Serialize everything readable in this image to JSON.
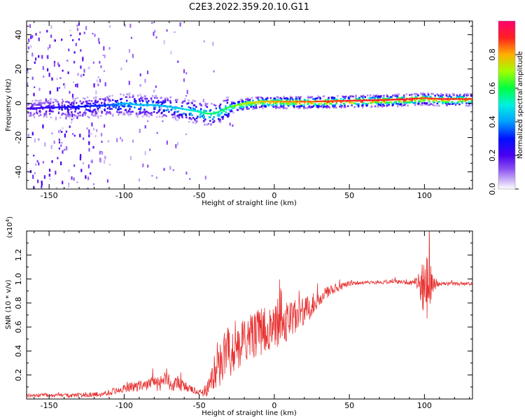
{
  "title": "C2E3.2022.359.20.10.G11",
  "colorbar": {
    "label": "Normalized spectral amplitude",
    "ticks": [
      0.0,
      0.2,
      0.4,
      0.6,
      0.8
    ],
    "tick_labels": [
      "0.0",
      "0.2",
      "0.4",
      "0.6",
      "0.8"
    ]
  },
  "chart_data": [
    {
      "type": "heatmap",
      "xlabel": "Height of straight line (km)",
      "ylabel": "Frequency (Hz)",
      "xlim": [
        -165,
        132
      ],
      "ylim": [
        -50,
        48
      ],
      "xticks": [
        -150,
        -100,
        -50,
        0,
        50,
        100
      ],
      "xtick_labels": [
        "-150",
        "-100",
        "-50",
        "0",
        "50",
        "100"
      ],
      "yticks": [
        -40,
        -20,
        0,
        20,
        40
      ],
      "ytick_labels": [
        "-40",
        "-20",
        "0",
        "20",
        "40"
      ],
      "colormap": [
        "#ffffff",
        "#d9c8f5",
        "#8a50f0",
        "#5000f0",
        "#0000ff",
        "#00e0ff",
        "#00ff60",
        "#c0ff00",
        "#ff8000",
        "#ff0040"
      ],
      "ridge": {
        "x": [
          -165,
          -150,
          -130,
          -110,
          -100,
          -90,
          -80,
          -70,
          -60,
          -50,
          -45,
          -40,
          -35,
          -30,
          -20,
          -10,
          0,
          10,
          25,
          50,
          75,
          90,
          100,
          110,
          132
        ],
        "freq": [
          -3,
          -2.5,
          -2,
          -1,
          0,
          -1,
          -1,
          -2,
          -3.5,
          -5,
          -6,
          -6,
          -4,
          -2,
          0,
          1,
          1,
          1,
          1,
          1.5,
          2,
          2.5,
          3,
          2.5,
          2.5
        ],
        "peak_amplitude": [
          0.2,
          0.25,
          0.3,
          0.35,
          0.45,
          0.45,
          0.45,
          0.45,
          0.5,
          0.55,
          0.6,
          0.6,
          0.6,
          0.65,
          0.75,
          0.8,
          0.85,
          0.85,
          0.9,
          0.95,
          0.95,
          0.95,
          0.9,
          0.95,
          0.9
        ]
      }
    },
    {
      "type": "line",
      "xlabel": "Height of straight line (km)",
      "ylabel": "SNR (10 * v/v)",
      "y_multiplier_label": "(x10",
      "y_multiplier_exp": "4",
      "xlim": [
        -165,
        132
      ],
      "ylim": [
        0,
        1.4
      ],
      "xticks": [
        -150,
        -100,
        -50,
        0,
        50,
        100
      ],
      "xtick_labels": [
        "-150",
        "-100",
        "-50",
        "0",
        "50",
        "100"
      ],
      "yticks": [
        0.2,
        0.4,
        0.6,
        0.8,
        1.0,
        1.2
      ],
      "ytick_labels": [
        "0.2",
        "0.4",
        "0.6",
        "0.8",
        "1.0",
        "1.2"
      ],
      "series": [
        {
          "color": "#e83030",
          "x": [
            -165,
            -150,
            -130,
            -115,
            -105,
            -95,
            -85,
            -75,
            -70,
            -60,
            -50,
            -45,
            -40,
            -35,
            -30,
            -25,
            -20,
            -10,
            0,
            10,
            20,
            30,
            40,
            50,
            60,
            70,
            80,
            90,
            95,
            100,
            102,
            105,
            110,
            120,
            132
          ],
          "y": [
            0.03,
            0.03,
            0.03,
            0.04,
            0.07,
            0.1,
            0.12,
            0.14,
            0.15,
            0.1,
            0.05,
            0.08,
            0.2,
            0.3,
            0.4,
            0.45,
            0.5,
            0.55,
            0.6,
            0.65,
            0.72,
            0.85,
            0.92,
            0.96,
            0.97,
            0.97,
            0.98,
            0.97,
            0.97,
            0.9,
            1.0,
            0.95,
            0.96,
            0.96,
            0.96
          ],
          "noise": [
            0.015,
            0.015,
            0.02,
            0.02,
            0.03,
            0.04,
            0.05,
            0.08,
            0.08,
            0.05,
            0.02,
            0.06,
            0.12,
            0.2,
            0.25,
            0.22,
            0.18,
            0.2,
            0.18,
            0.17,
            0.12,
            0.07,
            0.04,
            0.02,
            0.015,
            0.015,
            0.015,
            0.02,
            0.05,
            0.25,
            0.4,
            0.08,
            0.015,
            0.015,
            0.015
          ]
        }
      ]
    }
  ]
}
